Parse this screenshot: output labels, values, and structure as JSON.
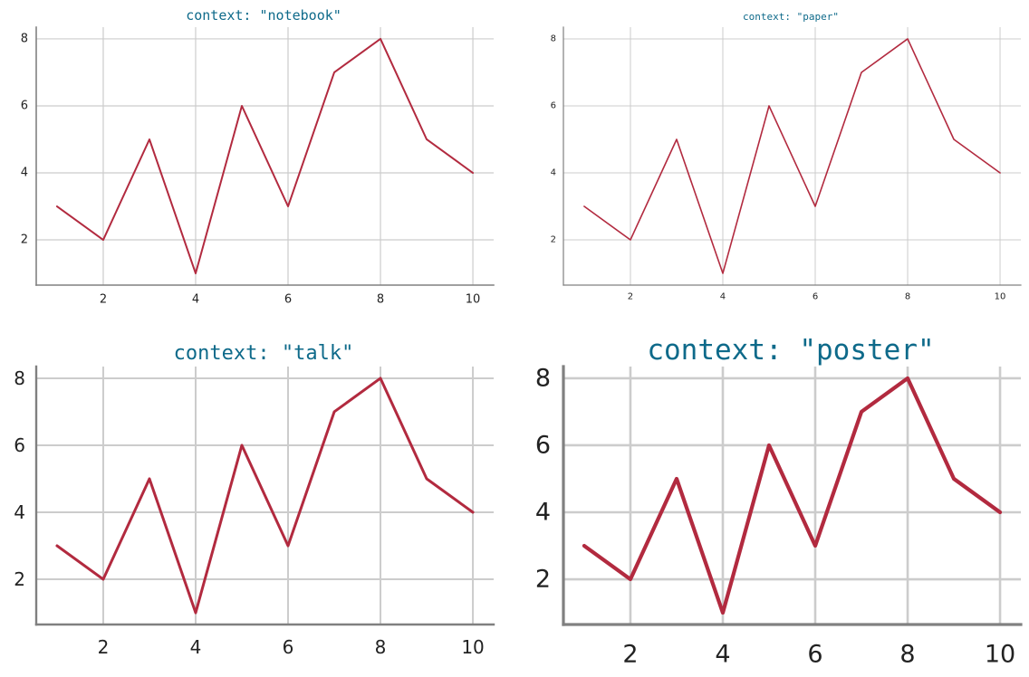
{
  "colors": {
    "line": "#b22a3f",
    "title": "#0e6a8a",
    "grid": "#cccccc",
    "spine": "#808080",
    "text": "#222222",
    "background": "#ffffff"
  },
  "chart_data": [
    {
      "type": "line",
      "title": "context: \"notebook\"",
      "x": [
        1,
        2,
        3,
        4,
        5,
        6,
        7,
        8,
        9,
        10
      ],
      "series": [
        {
          "values": [
            3,
            2,
            5,
            1,
            6,
            3,
            7,
            8,
            5,
            4
          ]
        }
      ],
      "xticks": [
        2,
        4,
        6,
        8,
        10
      ],
      "yticks": [
        2,
        4,
        6,
        8
      ],
      "xlim": [
        0.55,
        10.45
      ],
      "ylim": [
        0.65,
        8.35
      ],
      "grid": true,
      "xlabel": "",
      "ylabel": ""
    },
    {
      "type": "line",
      "title": "context: \"paper\"",
      "x": [
        1,
        2,
        3,
        4,
        5,
        6,
        7,
        8,
        9,
        10
      ],
      "series": [
        {
          "values": [
            3,
            2,
            5,
            1,
            6,
            3,
            7,
            8,
            5,
            4
          ]
        }
      ],
      "xticks": [
        2,
        4,
        6,
        8,
        10
      ],
      "yticks": [
        2,
        4,
        6,
        8
      ],
      "xlim": [
        0.55,
        10.45
      ],
      "ylim": [
        0.65,
        8.35
      ],
      "grid": true,
      "xlabel": "",
      "ylabel": ""
    },
    {
      "type": "line",
      "title": "context: \"talk\"",
      "x": [
        1,
        2,
        3,
        4,
        5,
        6,
        7,
        8,
        9,
        10
      ],
      "series": [
        {
          "values": [
            3,
            2,
            5,
            1,
            6,
            3,
            7,
            8,
            5,
            4
          ]
        }
      ],
      "xticks": [
        2,
        4,
        6,
        8,
        10
      ],
      "yticks": [
        2,
        4,
        6,
        8
      ],
      "xlim": [
        0.55,
        10.45
      ],
      "ylim": [
        0.65,
        8.35
      ],
      "grid": true,
      "xlabel": "",
      "ylabel": ""
    },
    {
      "type": "line",
      "title": "context: \"poster\"",
      "x": [
        1,
        2,
        3,
        4,
        5,
        6,
        7,
        8,
        9,
        10
      ],
      "series": [
        {
          "values": [
            3,
            2,
            5,
            1,
            6,
            3,
            7,
            8,
            5,
            4
          ]
        }
      ],
      "xticks": [
        2,
        4,
        6,
        8,
        10
      ],
      "yticks": [
        2,
        4,
        6,
        8
      ],
      "xlim": [
        0.55,
        10.45
      ],
      "ylim": [
        0.65,
        8.35
      ],
      "grid": true,
      "xlabel": "",
      "ylabel": ""
    }
  ]
}
